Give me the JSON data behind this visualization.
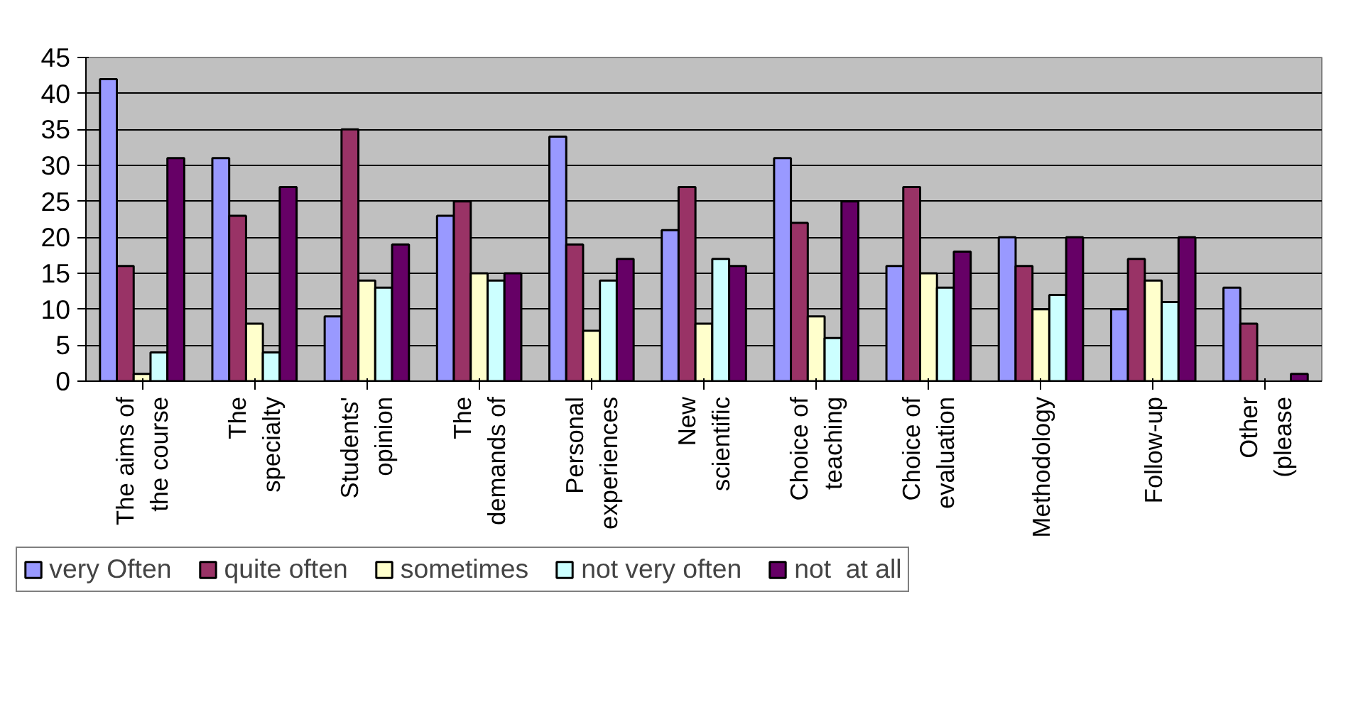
{
  "chart_data": {
    "type": "bar",
    "categories": [
      "The aims of\nthe course",
      "The\nspecialty",
      "Students'\nopinion",
      "The\ndemands of",
      "Personal\nexperiences",
      "New\nscientific",
      "Choice of\nteaching",
      "Choice of\nevaluation",
      "Methodology",
      "Follow-up",
      "Other\n(please"
    ],
    "series": [
      {
        "name": "very Often",
        "color": "#9999ff",
        "values": [
          42,
          31,
          9,
          23,
          34,
          21,
          31,
          16,
          20,
          10,
          13
        ]
      },
      {
        "name": "quite often",
        "color": "#993366",
        "values": [
          16,
          23,
          35,
          25,
          19,
          27,
          22,
          27,
          16,
          17,
          8
        ]
      },
      {
        "name": "sometimes",
        "color": "#ffffcc",
        "values": [
          1,
          8,
          14,
          15,
          7,
          8,
          9,
          15,
          10,
          14,
          0
        ]
      },
      {
        "name": "not very often",
        "color": "#ccffff",
        "values": [
          4,
          4,
          13,
          14,
          14,
          17,
          6,
          13,
          12,
          11,
          0
        ]
      },
      {
        "name": "not  at all",
        "color": "#660066",
        "values": [
          31,
          27,
          19,
          15,
          17,
          16,
          25,
          18,
          20,
          20,
          1
        ]
      }
    ],
    "ylim": [
      0,
      45
    ],
    "yticks": [
      0,
      5,
      10,
      15,
      20,
      25,
      30,
      35,
      40,
      45
    ],
    "grid": "y",
    "legend": "bottom"
  }
}
